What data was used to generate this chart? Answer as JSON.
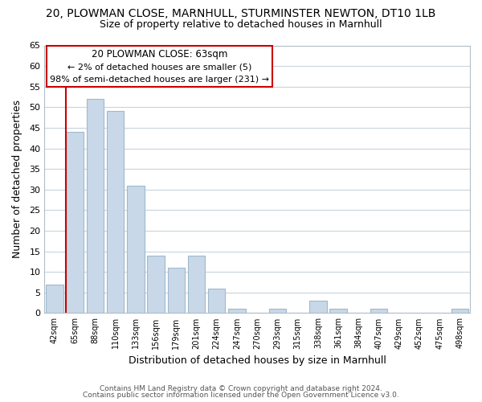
{
  "title": "20, PLOWMAN CLOSE, MARNHULL, STURMINSTER NEWTON, DT10 1LB",
  "subtitle": "Size of property relative to detached houses in Marnhull",
  "xlabel": "Distribution of detached houses by size in Marnhull",
  "ylabel": "Number of detached properties",
  "categories": [
    "42sqm",
    "65sqm",
    "88sqm",
    "110sqm",
    "133sqm",
    "156sqm",
    "179sqm",
    "201sqm",
    "224sqm",
    "247sqm",
    "270sqm",
    "293sqm",
    "315sqm",
    "338sqm",
    "361sqm",
    "384sqm",
    "407sqm",
    "429sqm",
    "452sqm",
    "475sqm",
    "498sqm"
  ],
  "values": [
    7,
    44,
    52,
    49,
    31,
    14,
    11,
    14,
    6,
    1,
    0,
    1,
    0,
    3,
    1,
    0,
    1,
    0,
    0,
    0,
    1
  ],
  "bar_color": "#c8d8e8",
  "bar_edge_color": "#a0b8cc",
  "vline_color": "#cc0000",
  "ylim": [
    0,
    65
  ],
  "yticks": [
    0,
    5,
    10,
    15,
    20,
    25,
    30,
    35,
    40,
    45,
    50,
    55,
    60,
    65
  ],
  "annotation_title": "20 PLOWMAN CLOSE: 63sqm",
  "annotation_line1": "← 2% of detached houses are smaller (5)",
  "annotation_line2": "98% of semi-detached houses are larger (231) →",
  "annotation_box_edge": "#cc0000",
  "footer_line1": "Contains HM Land Registry data © Crown copyright and database right 2024.",
  "footer_line2": "Contains public sector information licensed under the Open Government Licence v3.0.",
  "background_color": "#ffffff",
  "grid_color": "#c8d4df",
  "title_fontsize": 10,
  "subtitle_fontsize": 9
}
